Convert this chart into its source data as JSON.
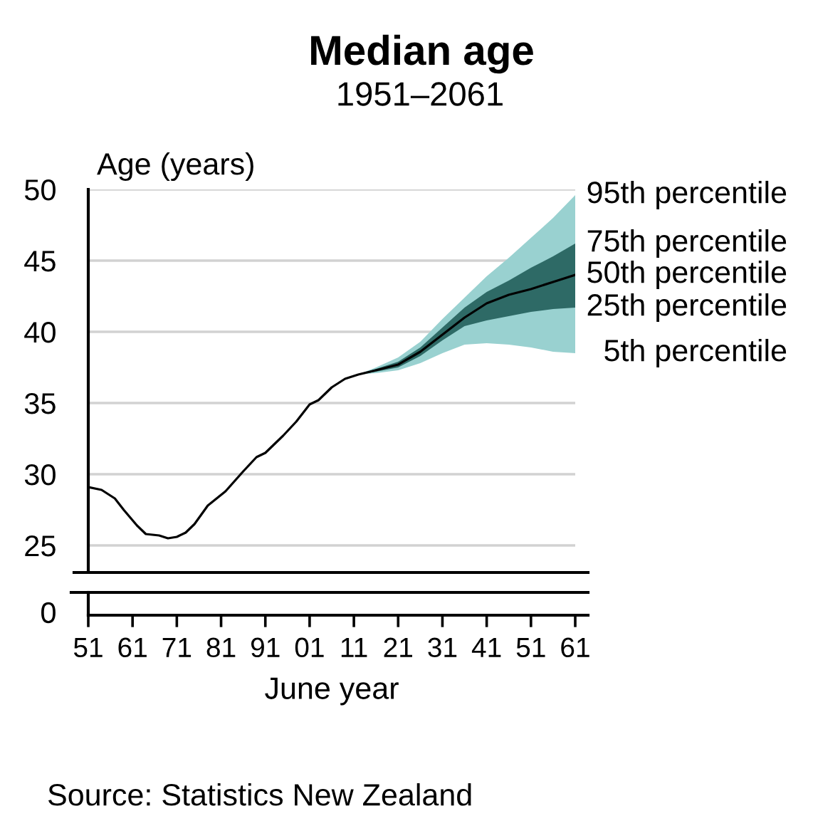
{
  "chart_data": {
    "type": "line",
    "title": "Median age",
    "subtitle": "1951–2061",
    "ylabel": "Age (years)",
    "xlabel": "June year",
    "series": [
      {
        "color": "#99d1d0",
        "x": [
          2012,
          2016,
          2021,
          2026,
          2031,
          2036,
          2041,
          2046,
          2051,
          2056,
          2061
        ],
        "values": [
          null,
          null,
          null,
          null,
          null,
          null,
          null,
          null,
          null,
          null,
          null
        ],
        "lower": [
          37.0,
          37.1,
          37.3,
          37.8,
          38.5,
          39.1,
          39.2,
          39.1,
          38.9,
          38.6,
          38.5
        ],
        "upper": [
          37.0,
          37.5,
          38.2,
          39.3,
          40.9,
          42.4,
          43.9,
          45.2,
          46.6,
          48.0,
          49.6
        ]
      },
      {
        "color": "#2e6a66",
        "x": [
          2012,
          2016,
          2021,
          2026,
          2031,
          2036,
          2041,
          2046,
          2051,
          2056,
          2061
        ],
        "values": [
          null,
          null,
          null,
          null,
          null,
          null,
          null,
          null,
          null,
          null,
          null
        ],
        "lower": [
          37.0,
          37.2,
          37.5,
          38.3,
          39.4,
          40.4,
          40.8,
          41.1,
          41.4,
          41.6,
          41.7
        ],
        "upper": [
          37.0,
          37.4,
          37.9,
          38.9,
          40.3,
          41.7,
          42.8,
          43.6,
          44.5,
          45.3,
          46.2
        ]
      },
      {
        "color": "#000000",
        "x": [
          1951,
          1954,
          1957,
          1959,
          1962,
          1964,
          1967,
          1969,
          1971,
          1973,
          1975,
          1978,
          1982,
          1986,
          1989,
          1991,
          1995,
          1998,
          2001,
          2003,
          2006,
          2009,
          2012,
          2016,
          2021,
          2026,
          2031,
          2036,
          2041,
          2046,
          2051,
          2056,
          2061
        ],
        "values": [
          29.1,
          28.9,
          28.3,
          27.5,
          26.4,
          25.8,
          25.7,
          25.5,
          25.6,
          25.9,
          26.5,
          27.8,
          28.8,
          30.2,
          31.2,
          31.5,
          32.7,
          33.7,
          34.9,
          35.2,
          36.1,
          36.7,
          37.0,
          37.3,
          37.7,
          38.6,
          39.8,
          41.0,
          42.0,
          42.6,
          43.0,
          43.5,
          44.0
        ]
      }
    ],
    "annotations": [
      "95th percentile",
      "75th percentile",
      "50th percentile",
      "25th percentile",
      "5th percentile",
      "0",
      "Source: Statistics New Zealand"
    ],
    "xlim": [
      1951,
      2061
    ],
    "ylim": [
      23.1,
      50
    ],
    "xticks": [
      {
        "value": 1951,
        "label": "51"
      },
      {
        "value": 1961,
        "label": "61"
      },
      {
        "value": 1971,
        "label": "71"
      },
      {
        "value": 1981,
        "label": "81"
      },
      {
        "value": 1991,
        "label": "91"
      },
      {
        "value": 2001,
        "label": "01"
      },
      {
        "value": 2011,
        "label": "11"
      },
      {
        "value": 2021,
        "label": "21"
      },
      {
        "value": 2031,
        "label": "31"
      },
      {
        "value": 2041,
        "label": "41"
      },
      {
        "value": 2051,
        "label": "51"
      },
      {
        "value": 2061,
        "label": "61"
      }
    ],
    "yticks": [
      25,
      30,
      35,
      40,
      45,
      50
    ],
    "grid": "y"
  }
}
